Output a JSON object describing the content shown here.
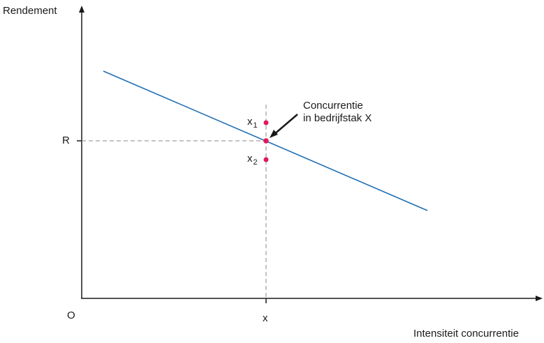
{
  "diagram": {
    "y_axis_label": "Rendement",
    "x_axis_label": "Intensiteit concurrentie",
    "origin_label": "O",
    "r_label": "R",
    "x_label": "x",
    "annotation": {
      "line1": "Concurrentie",
      "line2": "in bedrijfstak X"
    },
    "point_x1": {
      "base": "x",
      "sub": "1"
    },
    "point_x2": {
      "base": "x",
      "sub": "2"
    },
    "colors": {
      "line": "#1f6fb4",
      "points": "#e0195a",
      "axes": "#1a1a1a",
      "guides": "#888888"
    }
  }
}
